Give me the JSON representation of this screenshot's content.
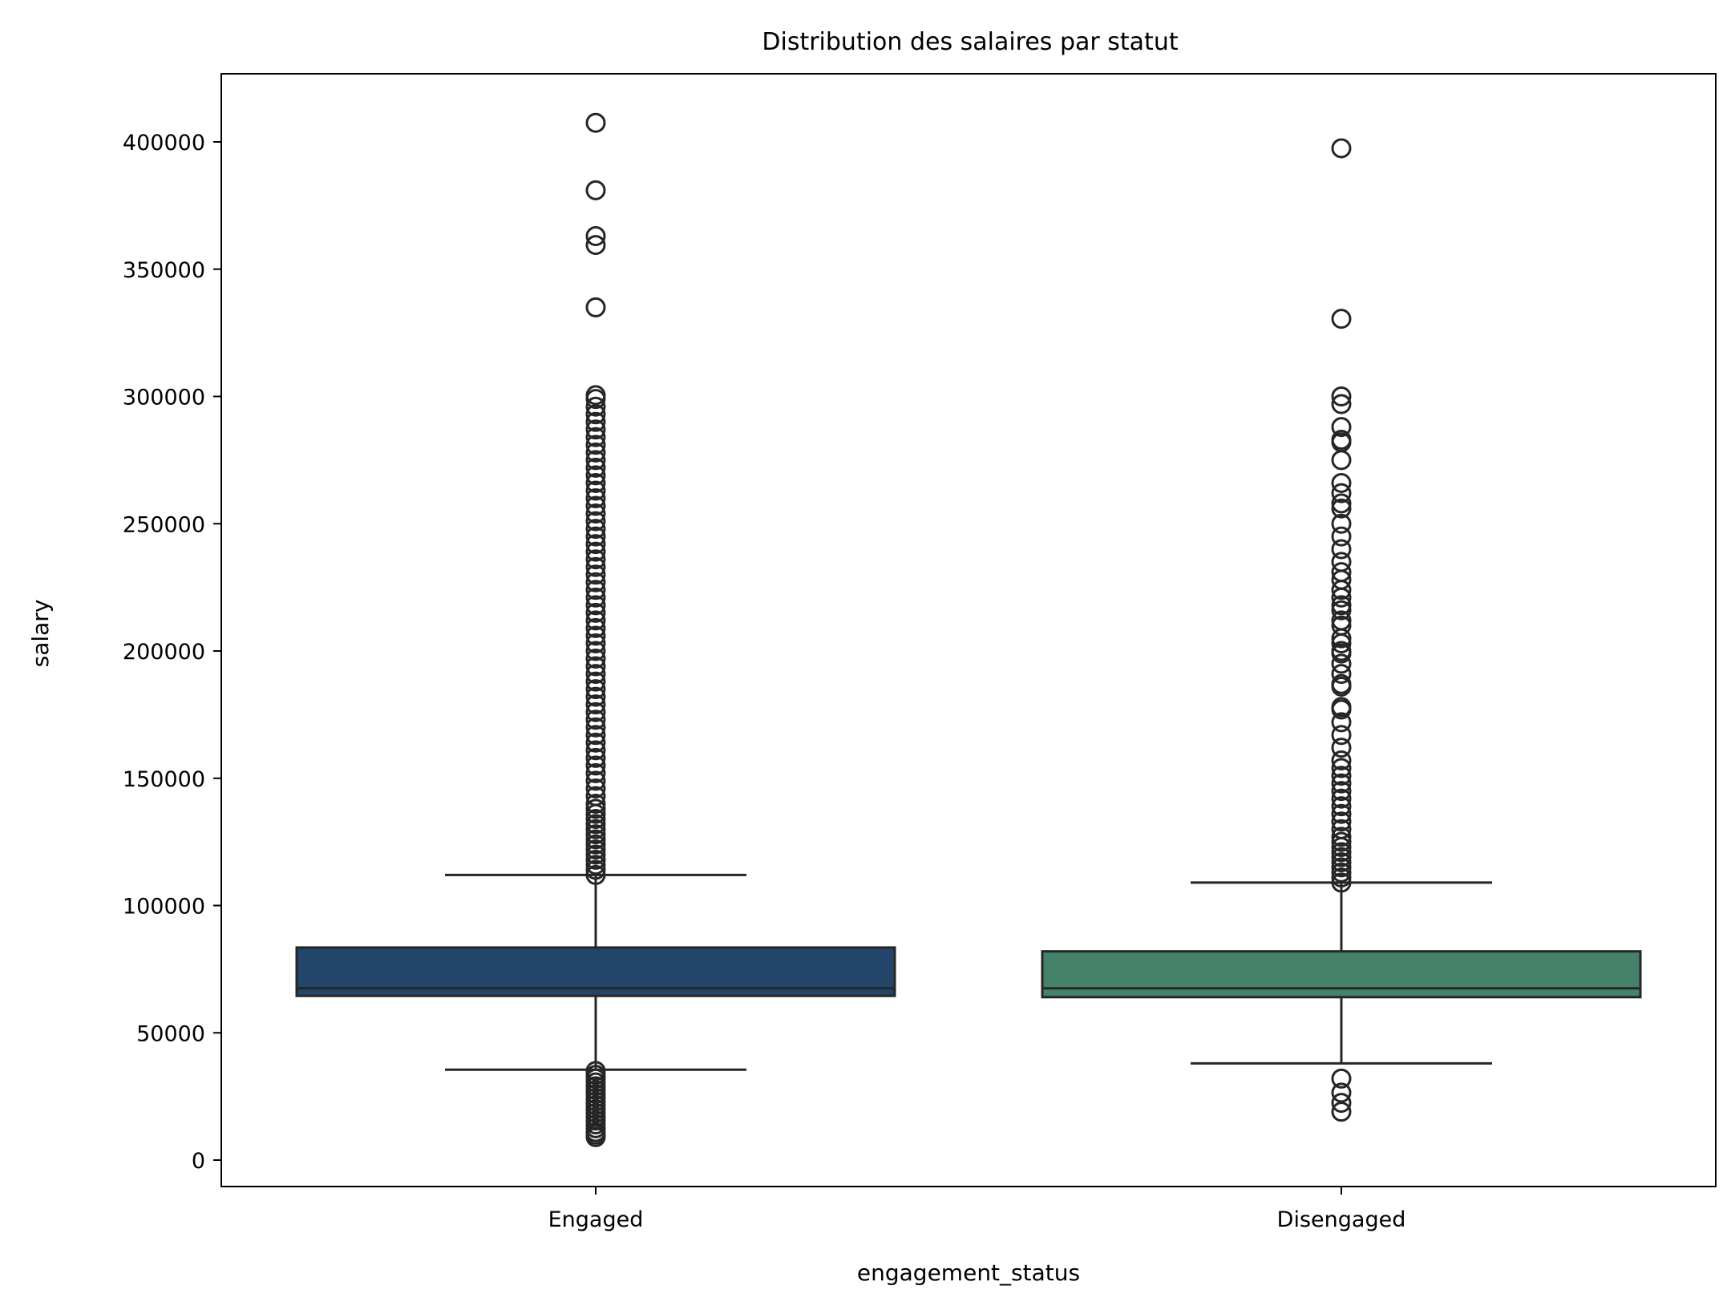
{
  "chart_data": {
    "type": "box",
    "title": "Distribution des salaires par statut",
    "xlabel": "engagement_status",
    "ylabel": "salary",
    "ylim": [
      -10000,
      425000
    ],
    "yticks": [
      0,
      50000,
      100000,
      150000,
      200000,
      250000,
      300000,
      350000,
      400000
    ],
    "categories": [
      "Engaged",
      "Disengaged"
    ],
    "grid": false,
    "legend": "none",
    "series": [
      {
        "category": "Engaged",
        "color": "#234569",
        "whisker_low": 35500,
        "q1": 64500,
        "median": 67500,
        "q3": 83500,
        "whisker_high": 112000,
        "outliers": [
          9000,
          10000,
          11000,
          12500,
          14000,
          15500,
          17000,
          18500,
          20000,
          21500,
          23000,
          24500,
          26000,
          27500,
          29000,
          30500,
          32000,
          33500,
          35000,
          112000,
          114000,
          116000,
          118000,
          120000,
          122000,
          124000,
          126000,
          128000,
          130000,
          132000,
          134000,
          136000,
          138000,
          140000,
          143000,
          146000,
          149000,
          152000,
          155000,
          158000,
          161000,
          164000,
          167000,
          170000,
          173000,
          176000,
          179000,
          182000,
          185000,
          188000,
          191000,
          194000,
          197000,
          200000,
          203000,
          206000,
          209000,
          212000,
          215000,
          218000,
          221000,
          224000,
          227000,
          230000,
          233000,
          236000,
          239000,
          242000,
          245000,
          248000,
          251000,
          254000,
          257000,
          260000,
          263000,
          266000,
          269000,
          272000,
          275000,
          278000,
          281000,
          284000,
          287000,
          290000,
          293000,
          296000,
          299000,
          300500,
          335000,
          359500,
          363000,
          381000,
          407500
        ]
      },
      {
        "category": "Disengaged",
        "color": "#44836a",
        "whisker_low": 38000,
        "q1": 64000,
        "median": 67500,
        "q3": 82000,
        "whisker_high": 109000,
        "outliers": [
          19000,
          22500,
          26500,
          32000,
          109000,
          111000,
          113000,
          115000,
          117000,
          119000,
          121000,
          123000,
          125000,
          127000,
          130000,
          133000,
          136000,
          139000,
          142000,
          145000,
          148000,
          151000,
          154000,
          157000,
          162000,
          167000,
          172000,
          177000,
          178000,
          186000,
          187000,
          191000,
          195000,
          199000,
          200000,
          203000,
          205000,
          210000,
          212000,
          216000,
          218000,
          221000,
          224000,
          228000,
          231000,
          235000,
          240000,
          245000,
          250000,
          256000,
          258000,
          262000,
          266000,
          275000,
          282000,
          283000,
          288000,
          297000,
          300000,
          330500,
          397500
        ]
      }
    ]
  }
}
